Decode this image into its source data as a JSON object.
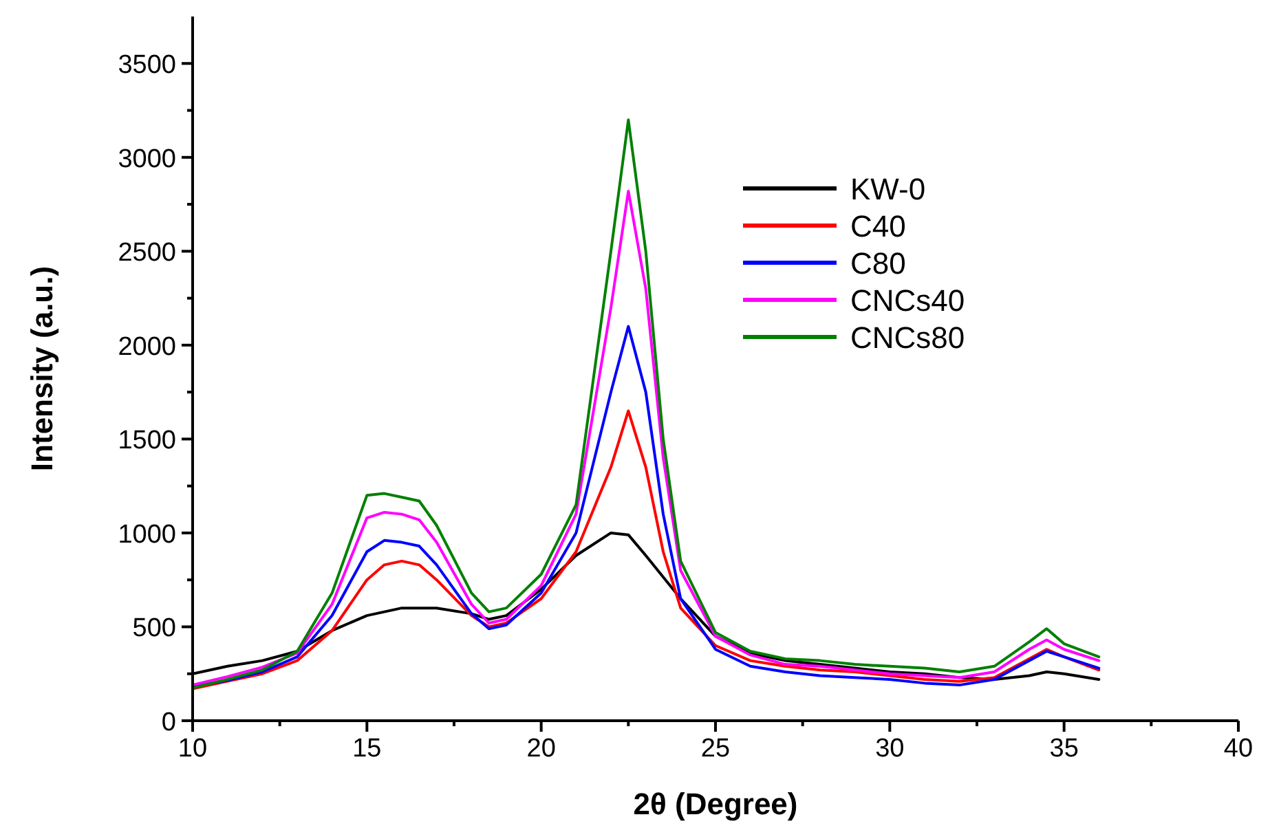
{
  "chart_data": {
    "type": "line",
    "xlabel": "2θ (Degree)",
    "ylabel": "Intensity (a.u.)",
    "xlim": [
      10,
      40
    ],
    "ylim": [
      0,
      3750
    ],
    "xticks": [
      10,
      {
        "value": 12.5,
        "label": null
      },
      15,
      {
        "value": 17.5,
        "label": null
      },
      20,
      {
        "value": 22.5,
        "label": null
      },
      25,
      {
        "value": 27.5,
        "label": null
      },
      30,
      {
        "value": 32.5,
        "label": null
      },
      35,
      {
        "value": 37.5,
        "label": null
      },
      40
    ],
    "yticks": [
      0,
      {
        "value": 250,
        "label": null
      },
      500,
      {
        "value": 750,
        "label": null
      },
      1000,
      {
        "value": 1250,
        "label": null
      },
      1500,
      {
        "value": 1750,
        "label": null
      },
      2000,
      {
        "value": 2250,
        "label": null
      },
      2500,
      {
        "value": 2750,
        "label": null
      },
      3000,
      {
        "value": 3250,
        "label": null
      },
      3500
    ],
    "grid": false,
    "legend": "top right",
    "marker": "none",
    "line_style": "solid",
    "series": [
      {
        "name": "KW-0",
        "color": "#000000",
        "x": [
          10,
          11,
          12,
          13,
          14,
          15,
          16,
          17,
          18,
          18.5,
          19,
          20,
          21,
          22,
          22.5,
          23,
          24,
          25,
          26,
          27,
          28,
          29,
          30,
          31,
          32,
          33,
          34,
          34.5,
          35,
          36
        ],
        "values": [
          250,
          290,
          320,
          370,
          480,
          560,
          600,
          600,
          570,
          540,
          560,
          700,
          880,
          1000,
          990,
          880,
          650,
          450,
          360,
          320,
          300,
          280,
          260,
          250,
          230,
          220,
          240,
          260,
          250,
          220
        ]
      },
      {
        "name": "C40",
        "color": "#ff0000",
        "x": [
          10,
          11,
          12,
          13,
          14,
          15,
          15.5,
          16,
          16.5,
          17,
          18,
          18.5,
          19,
          20,
          21,
          22,
          22.5,
          23,
          23.5,
          24,
          25,
          26,
          27,
          28,
          29,
          30,
          31,
          32,
          33,
          34,
          34.5,
          35,
          36
        ],
        "values": [
          170,
          210,
          250,
          320,
          480,
          750,
          830,
          850,
          830,
          750,
          560,
          500,
          520,
          650,
          900,
          1350,
          1650,
          1350,
          900,
          600,
          400,
          320,
          290,
          270,
          260,
          240,
          220,
          210,
          230,
          330,
          380,
          340,
          270
        ]
      },
      {
        "name": "C80",
        "color": "#0000ff",
        "x": [
          10,
          11,
          12,
          13,
          14,
          15,
          15.5,
          16,
          16.5,
          17,
          18,
          18.5,
          19,
          20,
          21,
          22,
          22.5,
          23,
          23.5,
          24,
          25,
          26,
          27,
          28,
          29,
          30,
          31,
          32,
          33,
          34,
          34.5,
          35,
          36
        ],
        "values": [
          180,
          215,
          260,
          340,
          560,
          900,
          960,
          950,
          930,
          830,
          570,
          490,
          510,
          680,
          1000,
          1750,
          2100,
          1750,
          1100,
          650,
          380,
          290,
          260,
          240,
          230,
          220,
          200,
          190,
          220,
          320,
          370,
          340,
          280
        ]
      },
      {
        "name": "CNCs40",
        "color": "#ff00ff",
        "x": [
          10,
          11,
          12,
          13,
          14,
          15,
          15.5,
          16,
          16.5,
          17,
          18,
          18.5,
          19,
          20,
          21,
          22,
          22.5,
          23,
          23.5,
          24,
          25,
          26,
          27,
          28,
          29,
          30,
          31,
          32,
          33,
          34,
          34.5,
          35,
          36
        ],
        "values": [
          190,
          235,
          285,
          360,
          620,
          1080,
          1110,
          1100,
          1070,
          950,
          620,
          520,
          540,
          720,
          1100,
          2200,
          2820,
          2300,
          1400,
          800,
          450,
          350,
          300,
          290,
          270,
          250,
          240,
          230,
          260,
          380,
          430,
          380,
          320
        ]
      },
      {
        "name": "CNCs80",
        "color": "#008000",
        "x": [
          10,
          11,
          12,
          13,
          14,
          15,
          15.5,
          16,
          16.5,
          17,
          18,
          18.5,
          19,
          20,
          21,
          22,
          22.5,
          23,
          23.5,
          24,
          25,
          26,
          27,
          28,
          29,
          30,
          31,
          32,
          33,
          34,
          34.5,
          35,
          36
        ],
        "values": [
          175,
          220,
          270,
          370,
          680,
          1200,
          1210,
          1190,
          1170,
          1040,
          680,
          580,
          600,
          780,
          1150,
          2500,
          3200,
          2500,
          1500,
          850,
          470,
          370,
          330,
          320,
          300,
          290,
          280,
          260,
          290,
          420,
          490,
          410,
          340
        ]
      }
    ]
  }
}
